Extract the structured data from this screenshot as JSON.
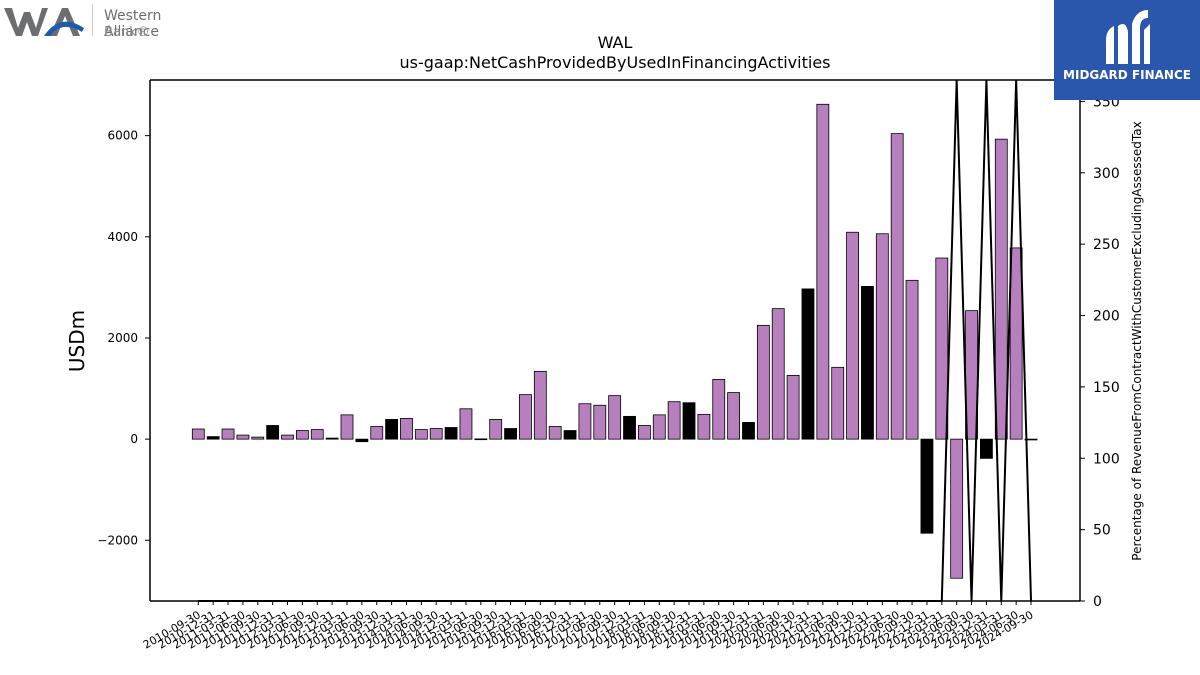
{
  "logos": {
    "left": {
      "name": "Western Alliance",
      "sub": "Bank®",
      "icon": "wa-monogram"
    },
    "right": {
      "name": "MIDGARD FINANCE",
      "icon": "midgard-monogram",
      "background": "#2a56ac"
    }
  },
  "chart_data": {
    "type": "bar",
    "title": "WAL",
    "subtitle": "us-gaap:NetCashProvidedByUsedInFinancingActivities",
    "ylabel": "USDm",
    "ylabel_right": "Percentage of RevenueFromContractWithCustomerExcludingAssessedTax",
    "ylim": [
      -3200,
      7100
    ],
    "yticks": [
      -2000,
      0,
      2000,
      4000,
      6000
    ],
    "ylim_right": [
      0,
      365
    ],
    "yticks_right": [
      0,
      50,
      100,
      150,
      200,
      250,
      300,
      350
    ],
    "colors": {
      "positive": "#b87fbf",
      "negative": "#000000"
    },
    "bars": [
      {
        "date": "2010-09-30",
        "value": 200,
        "color": "purple"
      },
      {
        "date": "2010-12-31",
        "value": 50,
        "color": "black"
      },
      {
        "date": "2011-03-31",
        "value": 200,
        "color": "purple"
      },
      {
        "date": "2011-06-30",
        "value": 80,
        "color": "purple"
      },
      {
        "date": "2011-09-30",
        "value": 40,
        "color": "purple"
      },
      {
        "date": "2011-12-31",
        "value": 270,
        "color": "black"
      },
      {
        "date": "2012-03-31",
        "value": 80,
        "color": "purple"
      },
      {
        "date": "2012-06-30",
        "value": 170,
        "color": "purple"
      },
      {
        "date": "2012-09-30",
        "value": 190,
        "color": "purple"
      },
      {
        "date": "2012-12-31",
        "value": 20,
        "color": "black"
      },
      {
        "date": "2013-03-31",
        "value": 480,
        "color": "purple"
      },
      {
        "date": "2013-06-30",
        "value": -50,
        "color": "black"
      },
      {
        "date": "2013-09-30",
        "value": 250,
        "color": "purple"
      },
      {
        "date": "2013-12-31",
        "value": 390,
        "color": "black"
      },
      {
        "date": "2014-03-31",
        "value": 410,
        "color": "purple"
      },
      {
        "date": "2014-06-30",
        "value": 190,
        "color": "purple"
      },
      {
        "date": "2014-09-30",
        "value": 210,
        "color": "purple"
      },
      {
        "date": "2014-12-31",
        "value": 230,
        "color": "black"
      },
      {
        "date": "2015-03-31",
        "value": 600,
        "color": "purple"
      },
      {
        "date": "2015-06-30",
        "value": 5,
        "color": "black"
      },
      {
        "date": "2015-09-30",
        "value": 390,
        "color": "purple"
      },
      {
        "date": "2015-12-31",
        "value": 210,
        "color": "black"
      },
      {
        "date": "2016-03-31",
        "value": 880,
        "color": "purple"
      },
      {
        "date": "2016-06-30",
        "value": 1340,
        "color": "purple"
      },
      {
        "date": "2016-09-30",
        "value": 250,
        "color": "purple"
      },
      {
        "date": "2016-12-31",
        "value": 170,
        "color": "black"
      },
      {
        "date": "2017-03-31",
        "value": 700,
        "color": "purple"
      },
      {
        "date": "2017-06-30",
        "value": 670,
        "color": "purple"
      },
      {
        "date": "2017-09-30",
        "value": 860,
        "color": "purple"
      },
      {
        "date": "2017-12-31",
        "value": 450,
        "color": "black"
      },
      {
        "date": "2018-03-31",
        "value": 270,
        "color": "purple"
      },
      {
        "date": "2018-06-30",
        "value": 480,
        "color": "purple"
      },
      {
        "date": "2018-09-30",
        "value": 740,
        "color": "purple"
      },
      {
        "date": "2018-12-31",
        "value": 720,
        "color": "black"
      },
      {
        "date": "2019-03-31",
        "value": 490,
        "color": "purple"
      },
      {
        "date": "2019-06-30",
        "value": 1180,
        "color": "purple"
      },
      {
        "date": "2019-09-30",
        "value": 920,
        "color": "purple"
      },
      {
        "date": "2019-12-31",
        "value": 330,
        "color": "black"
      },
      {
        "date": "2020-03-31",
        "value": 2250,
        "color": "purple"
      },
      {
        "date": "2020-06-30",
        "value": 2580,
        "color": "purple"
      },
      {
        "date": "2020-09-30",
        "value": 1260,
        "color": "purple"
      },
      {
        "date": "2020-12-31",
        "value": 2970,
        "color": "black"
      },
      {
        "date": "2021-03-31",
        "value": 6620,
        "color": "purple"
      },
      {
        "date": "2021-06-30",
        "value": 1420,
        "color": "purple"
      },
      {
        "date": "2021-09-30",
        "value": 4090,
        "color": "purple"
      },
      {
        "date": "2021-12-31",
        "value": 3020,
        "color": "black"
      },
      {
        "date": "2022-03-31",
        "value": 4060,
        "color": "purple"
      },
      {
        "date": "2022-06-30",
        "value": 6040,
        "color": "purple"
      },
      {
        "date": "2022-09-30",
        "value": 3140,
        "color": "purple"
      },
      {
        "date": "2022-12-31",
        "value": -1860,
        "color": "black"
      },
      {
        "date": "2023-03-31",
        "value": 3580,
        "color": "purple"
      },
      {
        "date": "2023-06-30",
        "value": -2750,
        "color": "purple"
      },
      {
        "date": "2023-09-30",
        "value": 2540,
        "color": "purple"
      },
      {
        "date": "2023-12-31",
        "value": -380,
        "color": "black"
      },
      {
        "date": "2024-03-31",
        "value": 5930,
        "color": "purple"
      },
      {
        "date": "2024-06-30",
        "value": 3780,
        "color": "purple"
      },
      {
        "date": "2024-09-30",
        "value": 0,
        "color": "black"
      }
    ],
    "tick_labels": [
      "2010-09-30",
      "2010-12-31",
      "2011-03-31",
      "2011-06-30",
      "2011-09-30",
      "2011-12-31",
      "2012-03-31",
      "2012-06-30",
      "2012-09-30",
      "2012-12-31",
      "2013-03-31",
      "2013-06-30",
      "2013-09-30",
      "2013-12-31",
      "2014-03-31",
      "2014-06-30",
      "2014-09-30",
      "2014-12-31",
      "2015-03-31",
      "2015-06-30",
      "2015-09-30",
      "2015-12-31",
      "2016-03-31",
      "2016-06-30",
      "2016-09-30",
      "2016-12-31",
      "2017-03-31",
      "2017-06-30",
      "2017-09-30",
      "2017-12-31",
      "2018-03-31",
      "2018-06-30",
      "2018-09-30",
      "2018-12-31",
      "2019-03-31",
      "2019-06-30",
      "2019-09-30",
      "2019-12-31",
      "2020-03-31",
      "2020-06-30",
      "2020-09-30",
      "2020-12-31",
      "2021-03-31",
      "2021-06-30",
      "2021-09-30",
      "2021-12-31",
      "2022-03-31",
      "2022-06-30",
      "2022-09-30",
      "2022-12-31",
      "2023-03-31",
      "2023-06-30",
      "2023-09-30",
      "2023-12-31",
      "2024-03-31",
      "2024-06-30",
      "2024-09-30"
    ],
    "pct_line": [
      {
        "date": "2010-09-30",
        "value": 0
      },
      {
        "date": "2022-12-31",
        "value": 0
      },
      {
        "date": "2023-03-31",
        "value": 0
      },
      {
        "date": "2023-06-30",
        "value": 365
      },
      {
        "date": "2023-09-30",
        "value": 0
      },
      {
        "date": "2023-12-31",
        "value": 365
      },
      {
        "date": "2024-03-31",
        "value": 0
      },
      {
        "date": "2024-06-30",
        "value": 365
      },
      {
        "date": "2024-09-30",
        "value": 0
      }
    ],
    "grid": false,
    "legend": "none"
  }
}
